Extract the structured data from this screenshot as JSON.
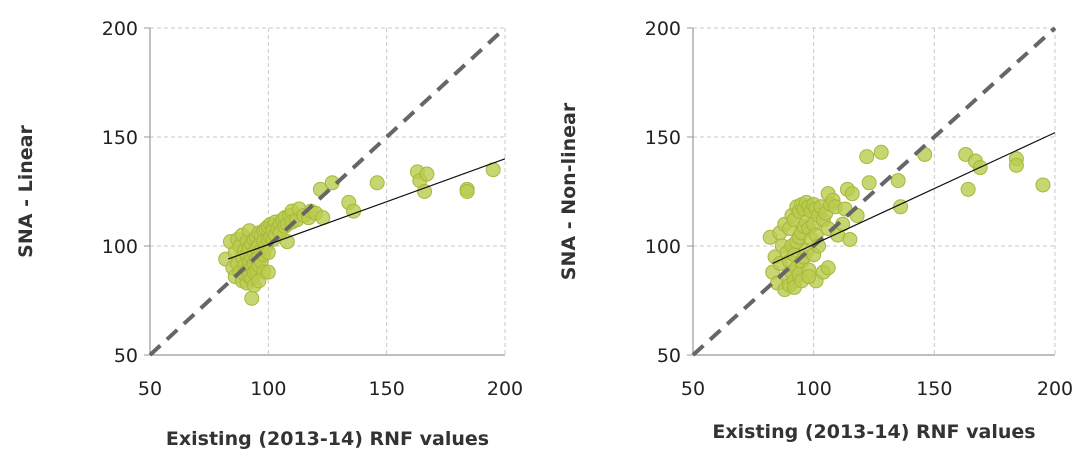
{
  "colors": {
    "point_fill": "#b9cc4e",
    "point_stroke": "#a6b83c",
    "identity_line": "#666666",
    "fit_line": "#111111",
    "grid": "#c8c8c8",
    "axis": "#999999"
  },
  "chart_data": [
    {
      "type": "scatter",
      "xlabel": "Existing (2013-14) RNF values",
      "ylabel": "SNA - Linear",
      "xlim": [
        50,
        200
      ],
      "ylim": [
        50,
        200
      ],
      "x_ticks": [
        50,
        100,
        150,
        200
      ],
      "y_ticks": [
        50,
        100,
        150,
        200
      ],
      "grid": true,
      "reference_line": {
        "type": "identity",
        "style": "dashed",
        "from": [
          50,
          50
        ],
        "to": [
          200,
          200
        ]
      },
      "fit_line": {
        "from": [
          83,
          94
        ],
        "to": [
          200,
          140
        ]
      },
      "series": [
        {
          "x": [
            82,
            84,
            85,
            86,
            86,
            87,
            87,
            88,
            88,
            89,
            89,
            89,
            90,
            90,
            90,
            91,
            91,
            91,
            91,
            92,
            92,
            92,
            92,
            93,
            93,
            93,
            93,
            94,
            94,
            94,
            94,
            95,
            95,
            95,
            95,
            96,
            96,
            96,
            96,
            97,
            97,
            97,
            98,
            98,
            98,
            98,
            99,
            99,
            100,
            100,
            100,
            101,
            101,
            102,
            102,
            102,
            103,
            103,
            104,
            105,
            105,
            106,
            107,
            107,
            108,
            109,
            110,
            110,
            112,
            113,
            115,
            117,
            118,
            120,
            122,
            123,
            127,
            134,
            136,
            146,
            163,
            164,
            166,
            167,
            184,
            184,
            195,
            93,
            94,
            96,
            100,
            108
          ],
          "y": [
            94,
            102,
            90,
            86,
            97,
            103,
            92,
            88,
            100,
            95,
            84,
            105,
            98,
            91,
            87,
            102,
            96,
            89,
            83,
            99,
            93,
            107,
            86,
            101,
            95,
            90,
            85,
            103,
            97,
            92,
            88,
            104,
            99,
            94,
            89,
            106,
            100,
            95,
            91,
            105,
            98,
            93,
            107,
            102,
            96,
            88,
            108,
            100,
            109,
            103,
            97,
            110,
            104,
            109,
            103,
            107,
            111,
            105,
            108,
            110,
            106,
            112,
            109,
            113,
            110,
            114,
            116,
            111,
            112,
            117,
            114,
            113,
            116,
            115,
            126,
            113,
            129,
            120,
            116,
            129,
            134,
            130,
            125,
            133,
            126,
            125,
            135,
            76,
            82,
            84,
            88,
            102
          ]
        }
      ]
    },
    {
      "type": "scatter",
      "xlabel": "Existing (2013-14) RNF values",
      "ylabel": "SNA - Non-linear",
      "xlim": [
        50,
        200
      ],
      "ylim": [
        50,
        200
      ],
      "x_ticks": [
        50,
        100,
        150,
        200
      ],
      "y_ticks": [
        50,
        100,
        150,
        200
      ],
      "grid": true,
      "reference_line": {
        "type": "identity",
        "style": "dashed",
        "from": [
          50,
          50
        ],
        "to": [
          200,
          200
        ]
      },
      "fit_line": {
        "from": [
          83,
          92
        ],
        "to": [
          200,
          152
        ]
      },
      "series": [
        {
          "x": [
            82,
            83,
            84,
            85,
            86,
            86,
            87,
            88,
            88,
            89,
            89,
            90,
            90,
            90,
            91,
            91,
            91,
            92,
            92,
            92,
            93,
            93,
            93,
            94,
            94,
            94,
            95,
            95,
            95,
            96,
            96,
            96,
            97,
            97,
            97,
            98,
            98,
            98,
            99,
            99,
            100,
            100,
            100,
            101,
            101,
            102,
            102,
            103,
            104,
            105,
            106,
            106,
            107,
            108,
            109,
            110,
            112,
            113,
            114,
            115,
            116,
            118,
            122,
            123,
            128,
            135,
            136,
            146,
            163,
            164,
            167,
            169,
            184,
            184,
            195,
            101,
            104,
            106,
            92,
            95,
            98
          ],
          "y": [
            104,
            88,
            95,
            83,
            106,
            92,
            100,
            80,
            110,
            97,
            86,
            108,
            93,
            82,
            114,
            100,
            88,
            112,
            96,
            84,
            118,
            102,
            90,
            116,
            104,
            87,
            119,
            106,
            93,
            117,
            109,
            95,
            120,
            111,
            98,
            118,
            108,
            89,
            116,
            103,
            119,
            110,
            96,
            117,
            105,
            114,
            100,
            118,
            112,
            115,
            124,
            108,
            119,
            121,
            118,
            105,
            110,
            117,
            126,
            103,
            124,
            114,
            141,
            129,
            143,
            130,
            118,
            142,
            142,
            126,
            139,
            136,
            140,
            137,
            128,
            84,
            88,
            90,
            81,
            84,
            86
          ]
        }
      ]
    }
  ]
}
